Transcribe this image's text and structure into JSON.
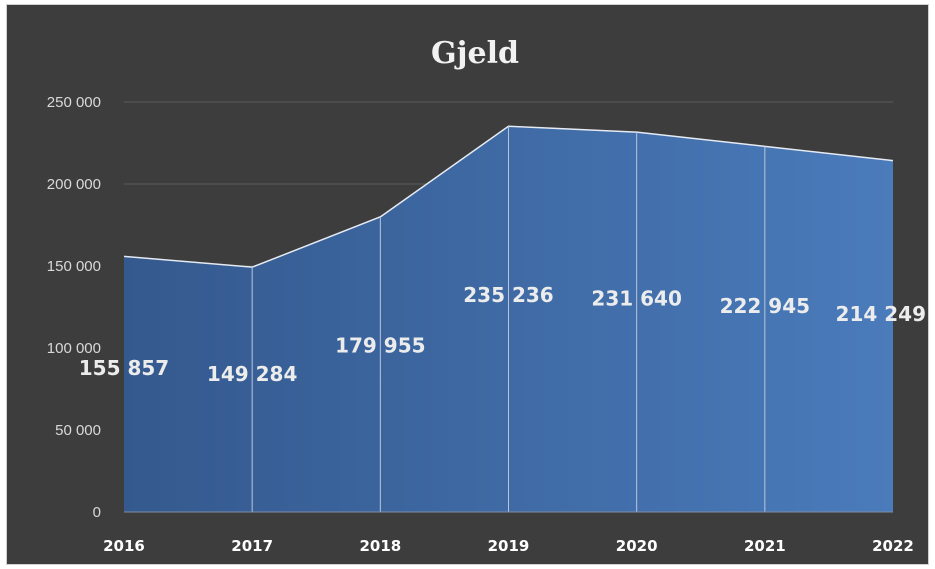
{
  "chart_data": {
    "type": "area",
    "title": "Gjeld",
    "categories": [
      "2016",
      "2017",
      "2018",
      "2019",
      "2020",
      "2021",
      "2022"
    ],
    "series": [
      {
        "values": [
          155857,
          149284,
          179955,
          235236,
          231640,
          222945,
          214249
        ],
        "labels": [
          "155 857",
          "149 284",
          "179 955",
          "235 236",
          "231 640",
          "222 945",
          "214 249"
        ]
      }
    ],
    "ylim": [
      0,
      250000
    ],
    "yticks": [
      0,
      50000,
      100000,
      150000,
      200000,
      250000
    ],
    "ytick_labels": [
      "0",
      "50 000",
      "100 000",
      "150 000",
      "200 000",
      "250 000"
    ],
    "grid": true,
    "legend": "none",
    "colors": {
      "background": "#3d3d3d",
      "fill_start": "#34598e",
      "fill_end": "#4a7bbb",
      "outline": "#e6eaf2",
      "gridline": "#5a5a5a"
    }
  }
}
